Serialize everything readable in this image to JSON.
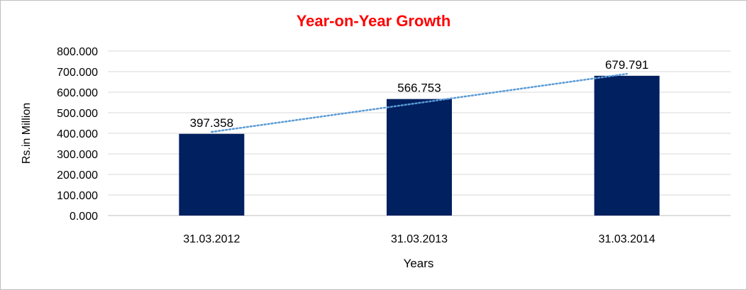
{
  "chart_data": {
    "type": "bar",
    "title": "Year-on-Year Growth",
    "title_color": "#ff0000",
    "xlabel": "Years",
    "ylabel": "Rs.in Million",
    "categories": [
      "31.03.2012",
      "31.03.2013",
      "31.03.2014"
    ],
    "values": [
      397.358,
      566.753,
      679.791
    ],
    "value_labels": [
      "397.358",
      "566.753",
      "679.791"
    ],
    "ylim": [
      0,
      800
    ],
    "yticks": [
      "0.000",
      "100.000",
      "200.000",
      "300.000",
      "400.000",
      "500.000",
      "600.000",
      "700.000",
      "800.000"
    ],
    "bar_color": "#002060",
    "trendline": {
      "type": "linear",
      "style": "dotted",
      "color": "#5b9bd5"
    },
    "grid": true,
    "legend": "none"
  }
}
